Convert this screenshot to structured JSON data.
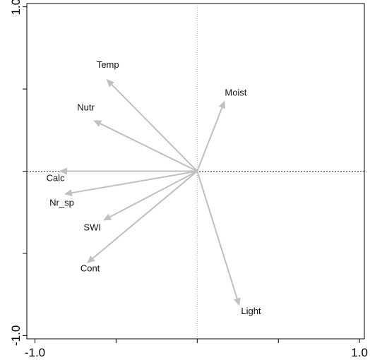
{
  "chart_data": {
    "type": "biplot-arrows",
    "title": "",
    "xlabel": "",
    "ylabel": "",
    "xlim": [
      -1.05,
      1.03
    ],
    "ylim": [
      -1.02,
      1.02
    ],
    "x_ticks": [
      -1.0,
      -0.5,
      0.0,
      0.5,
      1.0
    ],
    "y_ticks": [
      -1.0,
      -0.5,
      0.0,
      0.5,
      1.0
    ],
    "x_tick_labels": [
      {
        "value": -1.0,
        "label": "-1.0"
      },
      {
        "value": 1.0,
        "label": "1.0"
      }
    ],
    "y_tick_labels": [
      {
        "value": 1.0,
        "label": "1.0"
      },
      {
        "value": -1.0,
        "label": "-1.0"
      }
    ],
    "origin_lines": {
      "horizontal": "dashed black",
      "vertical": "dotted grey"
    },
    "arrow_color": "#c0c0c0",
    "arrows": [
      {
        "name": "Temp",
        "x": -0.56,
        "y": 0.56,
        "label_x": -0.62,
        "label_y": 0.63
      },
      {
        "name": "Nutr",
        "x": -0.64,
        "y": 0.31,
        "label_x": -0.74,
        "label_y": 0.37
      },
      {
        "name": "Moist",
        "x": 0.17,
        "y": 0.43,
        "label_x": 0.17,
        "label_y": 0.46
      },
      {
        "name": "Calc",
        "x": -0.85,
        "y": 0.0,
        "label_x": -0.93,
        "label_y": -0.06
      },
      {
        "name": "Nr_sp",
        "x": -0.82,
        "y": -0.14,
        "label_x": -0.91,
        "label_y": -0.21
      },
      {
        "name": "SWI",
        "x": -0.58,
        "y": -0.3,
        "label_x": -0.7,
        "label_y": -0.36
      },
      {
        "name": "Cont",
        "x": -0.68,
        "y": -0.56,
        "label_x": -0.72,
        "label_y": -0.61
      },
      {
        "name": "Light",
        "x": 0.26,
        "y": -0.82,
        "label_x": 0.27,
        "label_y": -0.87
      }
    ]
  }
}
